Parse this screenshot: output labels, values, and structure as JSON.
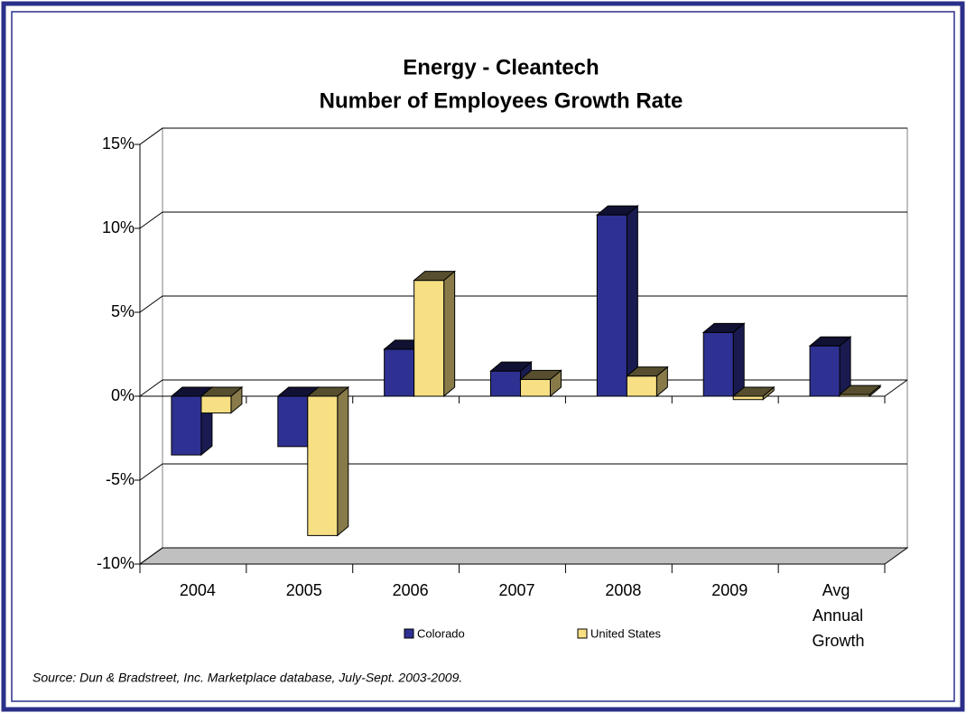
{
  "chart_data": {
    "type": "bar3d",
    "title": "Energy - Cleantech",
    "subtitle": "Number of Employees Growth Rate",
    "source": "Source: Dun & Bradstreet, Inc. Marketplace database, July-Sept. 2003-2009.",
    "categories": [
      "2004",
      "2005",
      "2006",
      "2007",
      "2008",
      "2009",
      "Avg Annual Growth"
    ],
    "series": [
      {
        "name": "Colorado",
        "color": "#2e3192",
        "values": [
          -3.5,
          -3.0,
          2.8,
          1.5,
          10.8,
          3.8,
          3.0
        ]
      },
      {
        "name": "United States",
        "color": "#f7e084",
        "values": [
          -1.0,
          -8.3,
          6.9,
          1.0,
          1.2,
          -0.2,
          0.1
        ]
      }
    ],
    "ylim": [
      -10,
      15
    ],
    "yticks": [
      {
        "value": -10,
        "label": "-10%"
      },
      {
        "value": -5,
        "label": "-5%"
      },
      {
        "value": 0,
        "label": "0%"
      },
      {
        "value": 5,
        "label": "5%"
      },
      {
        "value": 10,
        "label": "10%"
      },
      {
        "value": 15,
        "label": "15%"
      }
    ],
    "grid": true,
    "legend": "bottom"
  }
}
